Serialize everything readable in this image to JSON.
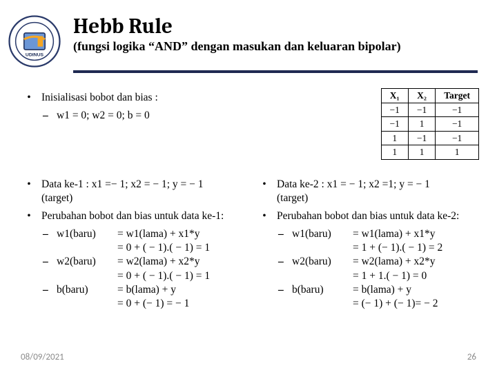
{
  "header": {
    "title": "Hebb Rule",
    "subtitle": "(fungsi logika “AND” dengan masukan dan keluaran bipolar)",
    "hr_color": "#1f2a52"
  },
  "init": {
    "line": "Inisialisasi bobot dan bias :",
    "sub": "w1 = 0; w2 = 0; b = 0"
  },
  "truth_table": {
    "headers": [
      "X₁",
      "X₂",
      "Target"
    ],
    "rows": [
      [
        "−1",
        "−1",
        "−1"
      ],
      [
        "−1",
        "1",
        "−1"
      ],
      [
        "1",
        "−1",
        "−1"
      ],
      [
        "1",
        "1",
        "1"
      ]
    ]
  },
  "left": {
    "l1": "Data ke-1 : x1 =− 1; x2 = − 1; y = − 1",
    "l1b": "(target)",
    "l2": "Perubahan bobot dan bias untuk data ke-1:",
    "w1_lbl": "w1(baru)",
    "w1_eq1": "= w1(lama) + x1*y",
    "w1_eq2": "= 0 + ( − 1).( − 1) = 1",
    "w2_lbl": "w2(baru)",
    "w2_eq1": "= w2(lama) + x2*y",
    "w2_eq2": "= 0 + ( − 1).( − 1) = 1",
    "b_lbl": "b(baru)",
    "b_eq1": "= b(lama) + y",
    "b_eq2": "= 0 + (− 1) = − 1"
  },
  "right": {
    "l1": "Data ke-2 : x1 = − 1; x2 =1; y = − 1",
    "l1b": "(target)",
    "l2": "Perubahan bobot dan bias untuk data ke-2:",
    "w1_lbl": "w1(baru)",
    "w1_eq1": "= w1(lama) + x1*y",
    "w1_eq2": "= 1 + (− 1).( − 1) = 2",
    "w2_lbl": "w2(baru)",
    "w2_eq1": "= w2(lama) + x2*y",
    "w2_eq2": "= 1 + 1.( − 1) = 0",
    "b_lbl": "b(baru)",
    "b_eq1": "= b(lama) + y",
    "b_eq2": "= (− 1) + (− 1)= − 2"
  },
  "footer": {
    "date": "08/09/2021",
    "page": "26"
  },
  "colors": {
    "text": "#000000",
    "bg": "#ffffff",
    "footer": "#8a8a8a"
  }
}
